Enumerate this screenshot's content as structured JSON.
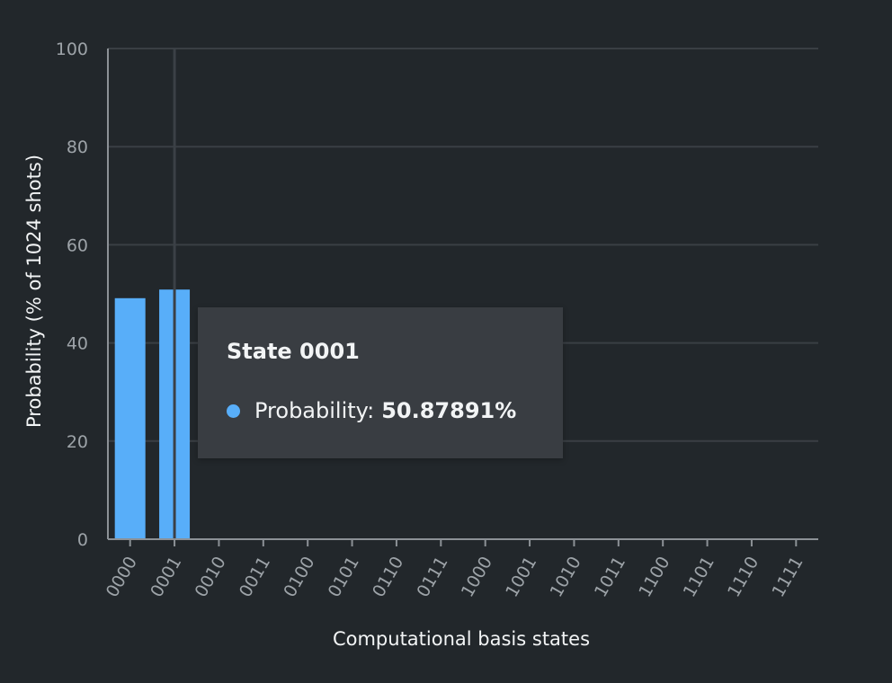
{
  "chart_data": {
    "type": "bar",
    "xlabel": "Computational basis states",
    "ylabel": "Probability (% of 1024 shots)",
    "ylim": [
      0,
      100
    ],
    "yticks": [
      0,
      20,
      40,
      60,
      80,
      100
    ],
    "grid": true,
    "categories": [
      "0000",
      "0001",
      "0010",
      "0011",
      "0100",
      "0101",
      "0110",
      "0111",
      "1000",
      "1001",
      "1010",
      "1011",
      "1100",
      "1101",
      "1110",
      "1111"
    ],
    "values": [
      49.12109,
      50.87891,
      0,
      0,
      0,
      0,
      0,
      0,
      0,
      0,
      0,
      0,
      0,
      0,
      0,
      0
    ],
    "bar_color": "#58aef9",
    "highlighted_category": "0001"
  },
  "tooltip": {
    "title": "State 0001",
    "label": "Probability:",
    "value": "50.87891%",
    "dot_color": "#58aef9"
  },
  "colors": {
    "background": "#22272b",
    "gridline": "#3a3f44",
    "axis": "#8c9196",
    "cursor_line": "#3b4046"
  }
}
